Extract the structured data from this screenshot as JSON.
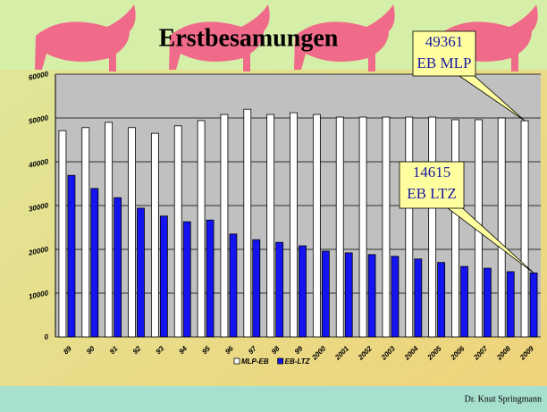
{
  "chart_data": {
    "type": "bar",
    "title": "Erstbesamungen",
    "categories": [
      "89",
      "90",
      "91",
      "92",
      "93",
      "94",
      "95",
      "96",
      "97",
      "98",
      "99",
      "2000",
      "2001",
      "2002",
      "2003",
      "2004",
      "2005",
      "2006",
      "2007",
      "2008",
      "2009"
    ],
    "series": [
      {
        "name": "MLP-EB",
        "color": "#ffffff",
        "values": [
          47100,
          47800,
          49000,
          47800,
          46500,
          48200,
          49400,
          50800,
          52000,
          50800,
          51200,
          50800,
          50200,
          50200,
          50200,
          50200,
          50200,
          49600,
          49600,
          50000,
          49361
        ]
      },
      {
        "name": "EB-LTZ",
        "color": "#1414f0",
        "values": [
          36900,
          33900,
          31800,
          29400,
          27600,
          26300,
          26700,
          23500,
          22200,
          21600,
          20800,
          19600,
          19200,
          18800,
          18400,
          17800,
          17000,
          16100,
          15700,
          14900,
          14615
        ]
      }
    ],
    "ylim": [
      0,
      60000
    ],
    "yticks": [
      0,
      10000,
      20000,
      30000,
      40000,
      50000,
      60000
    ],
    "grid": true,
    "annotations": [
      {
        "lines": [
          "49361",
          "EB MLP"
        ],
        "series": 0,
        "index": 20
      },
      {
        "lines": [
          "14615",
          "EB LTZ"
        ],
        "series": 1,
        "index": 20
      }
    ],
    "footer": "Dr. Knut Springmann"
  }
}
